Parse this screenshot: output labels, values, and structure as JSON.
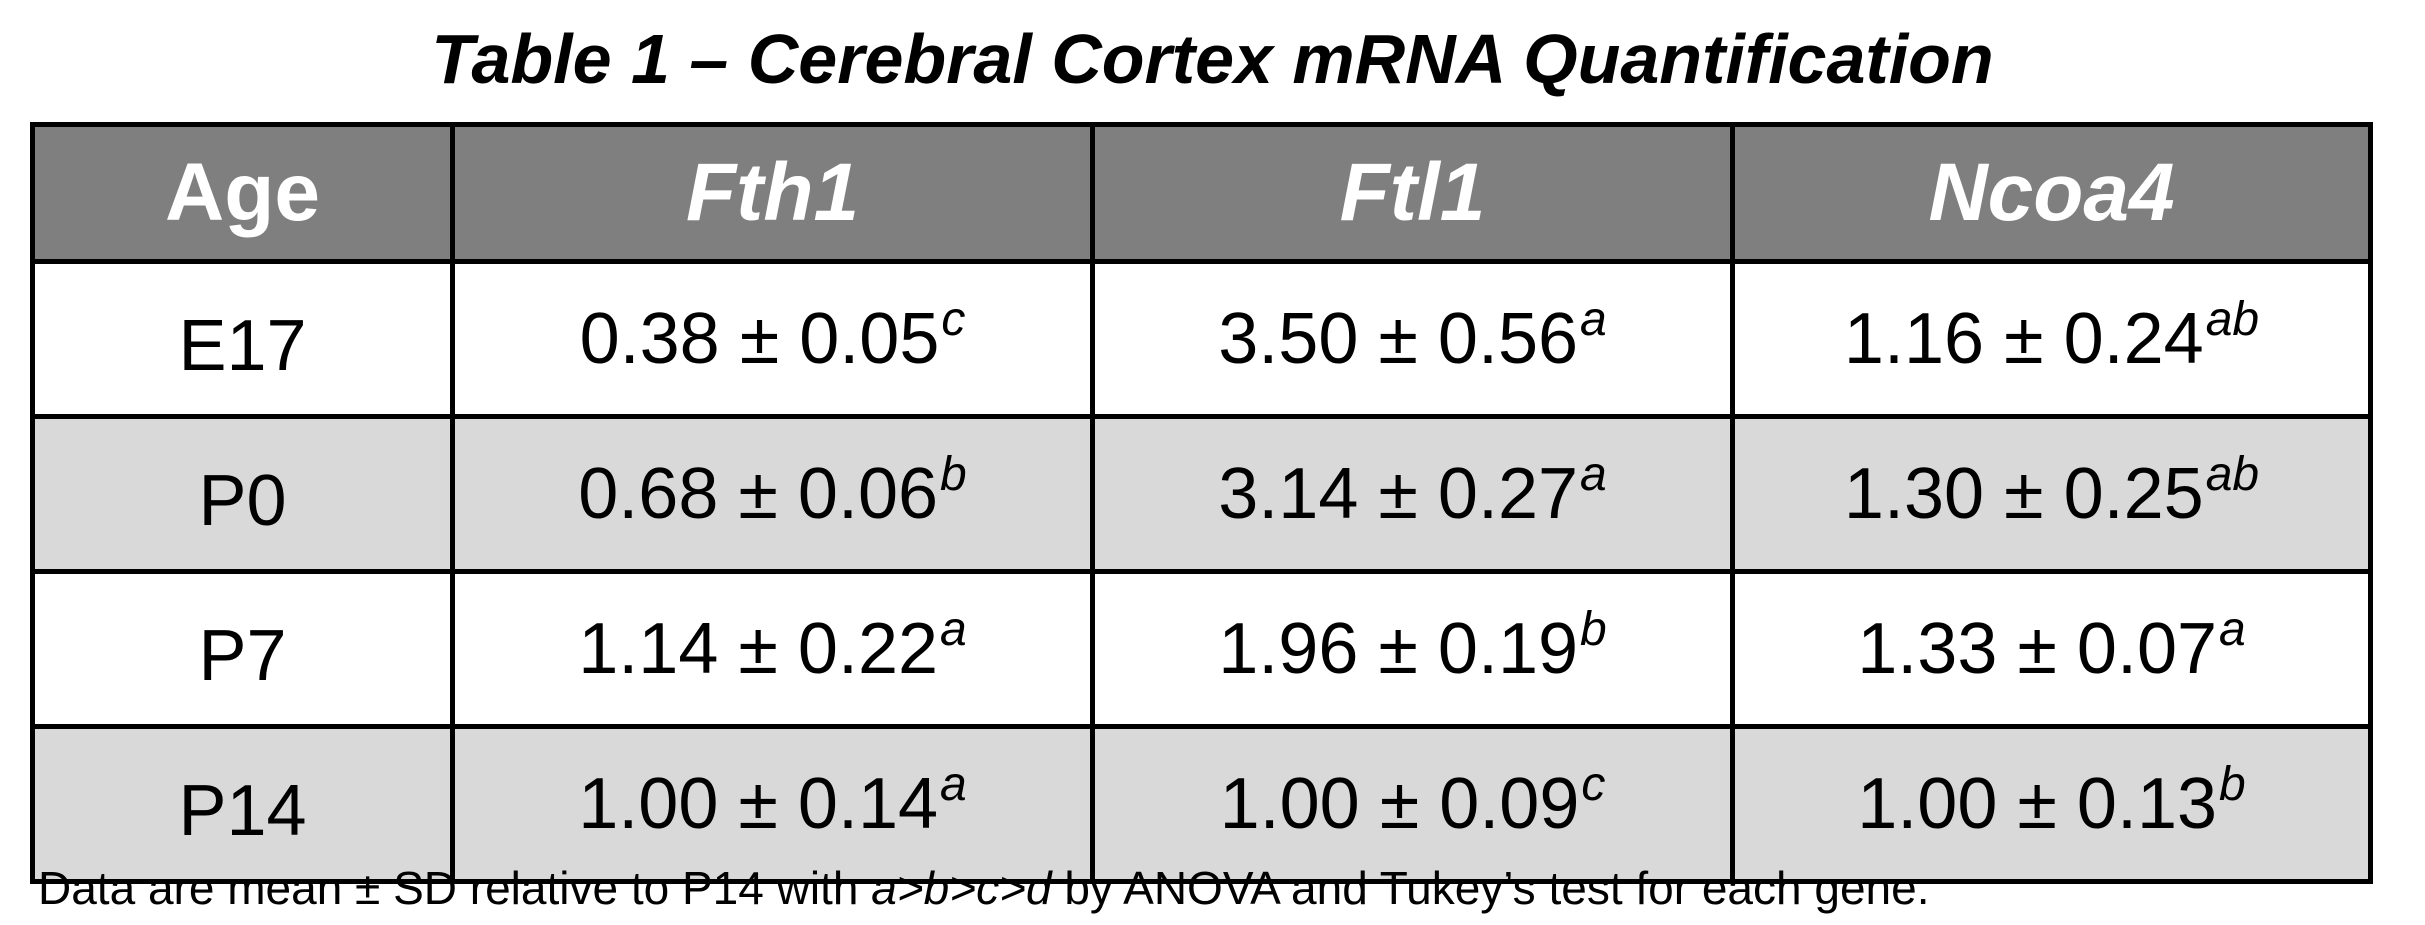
{
  "title": "Table 1 – Cerebral Cortex mRNA Quantification",
  "table": {
    "headers": [
      "Age",
      "Fth1",
      "Ftl1",
      "Ncoa4"
    ],
    "rows": [
      {
        "age": "E17",
        "cells": [
          {
            "value": "0.38 ± 0.05",
            "sup": "c"
          },
          {
            "value": "3.50 ± 0.56",
            "sup": "a"
          },
          {
            "value": "1.16 ± 0.24",
            "sup": "ab"
          }
        ]
      },
      {
        "age": "P0",
        "cells": [
          {
            "value": "0.68 ± 0.06",
            "sup": "b"
          },
          {
            "value": "3.14 ± 0.27",
            "sup": "a"
          },
          {
            "value": "1.30 ± 0.25",
            "sup": "ab"
          }
        ]
      },
      {
        "age": "P7",
        "cells": [
          {
            "value": "1.14 ± 0.22",
            "sup": "a"
          },
          {
            "value": "1.96 ± 0.19",
            "sup": "b"
          },
          {
            "value": "1.33 ± 0.07",
            "sup": "a"
          }
        ]
      },
      {
        "age": "P14",
        "cells": [
          {
            "value": "1.00 ± 0.14",
            "sup": "a"
          },
          {
            "value": "1.00 ± 0.09",
            "sup": "c"
          },
          {
            "value": "1.00 ± 0.13",
            "sup": "b"
          }
        ]
      }
    ]
  },
  "footnote": {
    "text_before": "Data are mean ± SD relative to P14 with ",
    "italic": "a>b>c>d",
    "text_after": " by ANOVA and Tukey’s test for each gene."
  },
  "colors": {
    "header_bg": "#7f7f7f",
    "header_text": "#ffffff",
    "shaded_row_bg": "#d9d9d9",
    "plain_row_bg": "#ffffff",
    "border": "#000000"
  }
}
